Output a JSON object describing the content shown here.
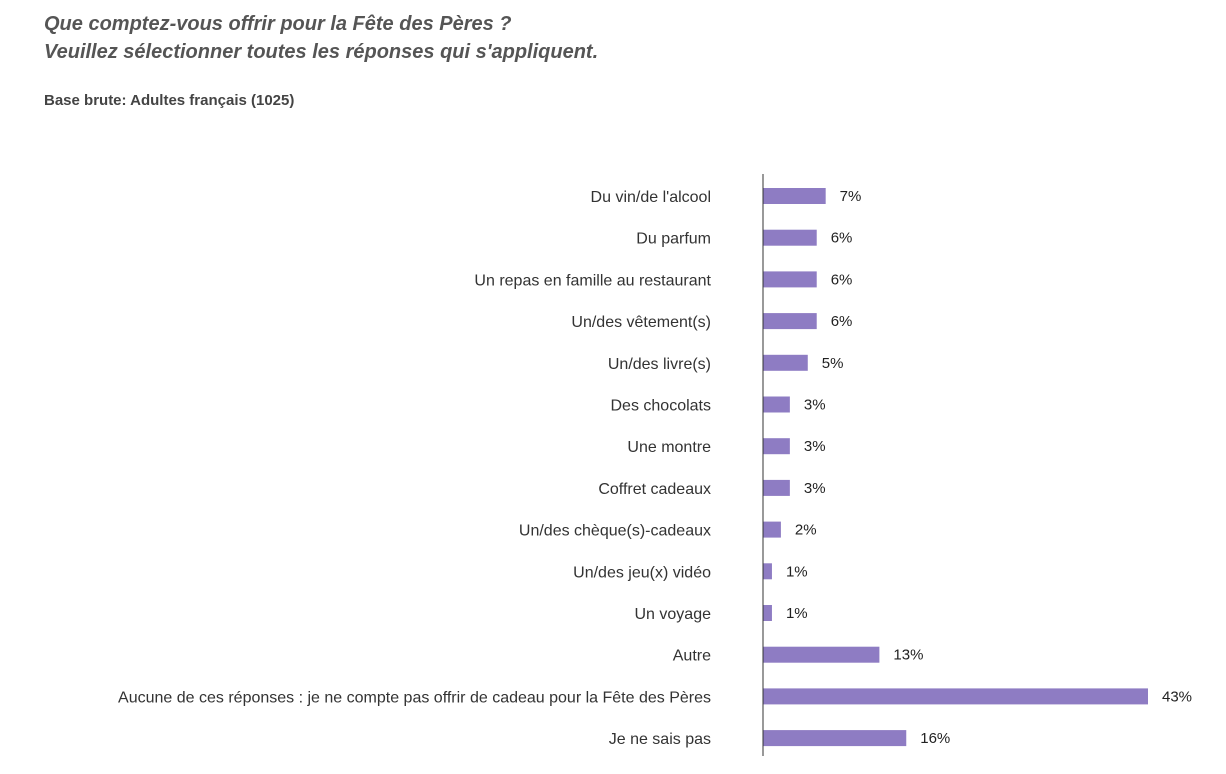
{
  "header": {
    "title_line1": "Que comptez-vous offrir pour la Fête des Pères ?",
    "title_line2": "Veuillez sélectionner toutes les réponses qui s'appliquent.",
    "base": "Base brute: Adultes français (1025)"
  },
  "chart_data": {
    "type": "bar",
    "orientation": "horizontal",
    "categories": [
      "Du vin/de l'alcool",
      "Du parfum",
      "Un repas en famille au restaurant",
      "Un/des vêtement(s)",
      "Un/des livre(s)",
      "Des chocolats",
      "Une montre",
      "Coffret cadeaux",
      "Un/des chèque(s)-cadeaux",
      "Un/des jeu(x) vidéo",
      "Un voyage",
      "Autre",
      "Aucune de ces réponses : je ne compte pas offrir de cadeau pour la Fête des Pères",
      "Je ne sais pas"
    ],
    "values": [
      7,
      6,
      6,
      6,
      5,
      3,
      3,
      3,
      2,
      1,
      1,
      13,
      43,
      16
    ],
    "value_labels": [
      "7%",
      "6%",
      "6%",
      "6%",
      "5%",
      "3%",
      "3%",
      "3%",
      "2%",
      "1%",
      "1%",
      "13%",
      "43%",
      "16%"
    ],
    "unit": "%",
    "xlim": [
      0,
      45
    ],
    "grid": false,
    "legend": "none",
    "bar_color": "#8e7cc3",
    "axis_color": "#333333"
  }
}
